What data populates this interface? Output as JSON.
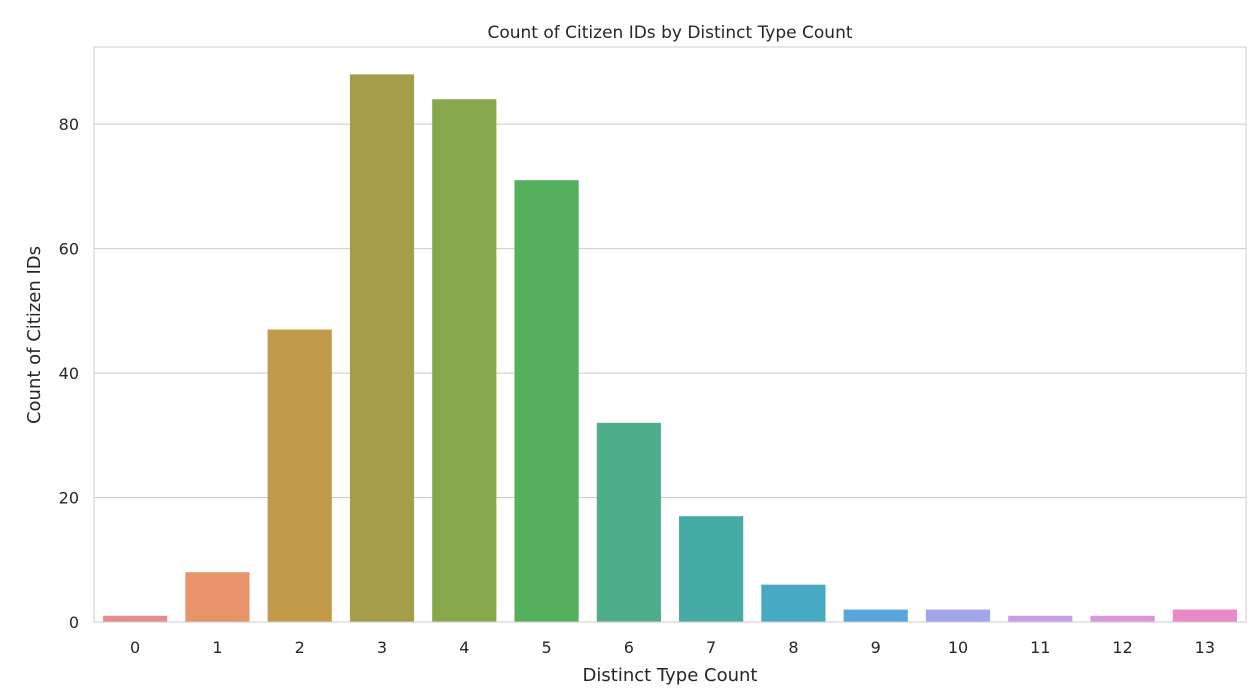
{
  "chart_data": {
    "type": "bar",
    "title": "Count of Citizen IDs by Distinct Type Count",
    "xlabel": "Distinct Type Count",
    "ylabel": "Count of Citizen IDs",
    "categories": [
      "0",
      "1",
      "2",
      "3",
      "4",
      "5",
      "6",
      "7",
      "8",
      "9",
      "10",
      "11",
      "12",
      "13"
    ],
    "values": [
      1,
      8,
      47,
      88,
      84,
      71,
      32,
      17,
      6,
      2,
      2,
      1,
      1,
      2
    ],
    "colors": [
      "#e88b8e",
      "#e8936a",
      "#c29a4a",
      "#a39e47",
      "#88a64a",
      "#55b05e",
      "#4fae8a",
      "#46aaa5",
      "#47a9c2",
      "#5aa6dc",
      "#a3a5ea",
      "#c79ee8",
      "#db94dd",
      "#e88bc4"
    ],
    "yticks": [
      0,
      20,
      40,
      60,
      80
    ],
    "ylim": [
      0,
      92.4
    ],
    "grid": true,
    "grid_axis": "y",
    "legend": "none"
  }
}
